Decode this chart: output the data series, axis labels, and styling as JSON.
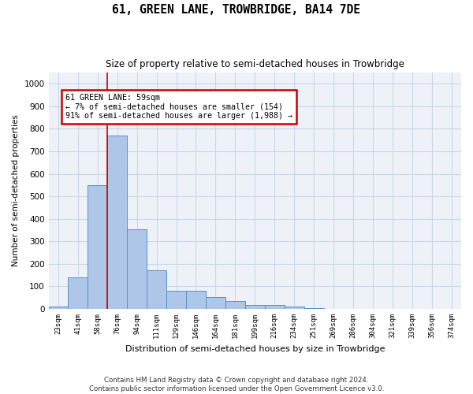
{
  "title": "61, GREEN LANE, TROWBRIDGE, BA14 7DE",
  "subtitle": "Size of property relative to semi-detached houses in Trowbridge",
  "xlabel": "Distribution of semi-detached houses by size in Trowbridge",
  "ylabel": "Number of semi-detached properties",
  "footer_line1": "Contains HM Land Registry data © Crown copyright and database right 2024.",
  "footer_line2": "Contains public sector information licensed under the Open Government Licence v3.0.",
  "bar_labels": [
    "23sqm",
    "41sqm",
    "58sqm",
    "76sqm",
    "94sqm",
    "111sqm",
    "129sqm",
    "146sqm",
    "164sqm",
    "181sqm",
    "199sqm",
    "216sqm",
    "234sqm",
    "251sqm",
    "269sqm",
    "286sqm",
    "304sqm",
    "321sqm",
    "339sqm",
    "356sqm",
    "374sqm"
  ],
  "bar_values": [
    10,
    140,
    548,
    770,
    355,
    172,
    82,
    82,
    52,
    35,
    18,
    18,
    10,
    5,
    0,
    0,
    0,
    0,
    0,
    0,
    0
  ],
  "bar_color": "#aec6e8",
  "bar_edge_color": "#5592c8",
  "ylim": [
    0,
    1050
  ],
  "yticks": [
    0,
    100,
    200,
    300,
    400,
    500,
    600,
    700,
    800,
    900,
    1000
  ],
  "property_label": "61 GREEN LANE: 59sqm",
  "pct_smaller": 7,
  "count_smaller": 154,
  "pct_larger": 91,
  "count_larger": 1988,
  "vline_x": 2.5,
  "annotation_box_color": "#cc0000",
  "grid_color": "#c8d8e8",
  "background_color": "#eef2f8"
}
